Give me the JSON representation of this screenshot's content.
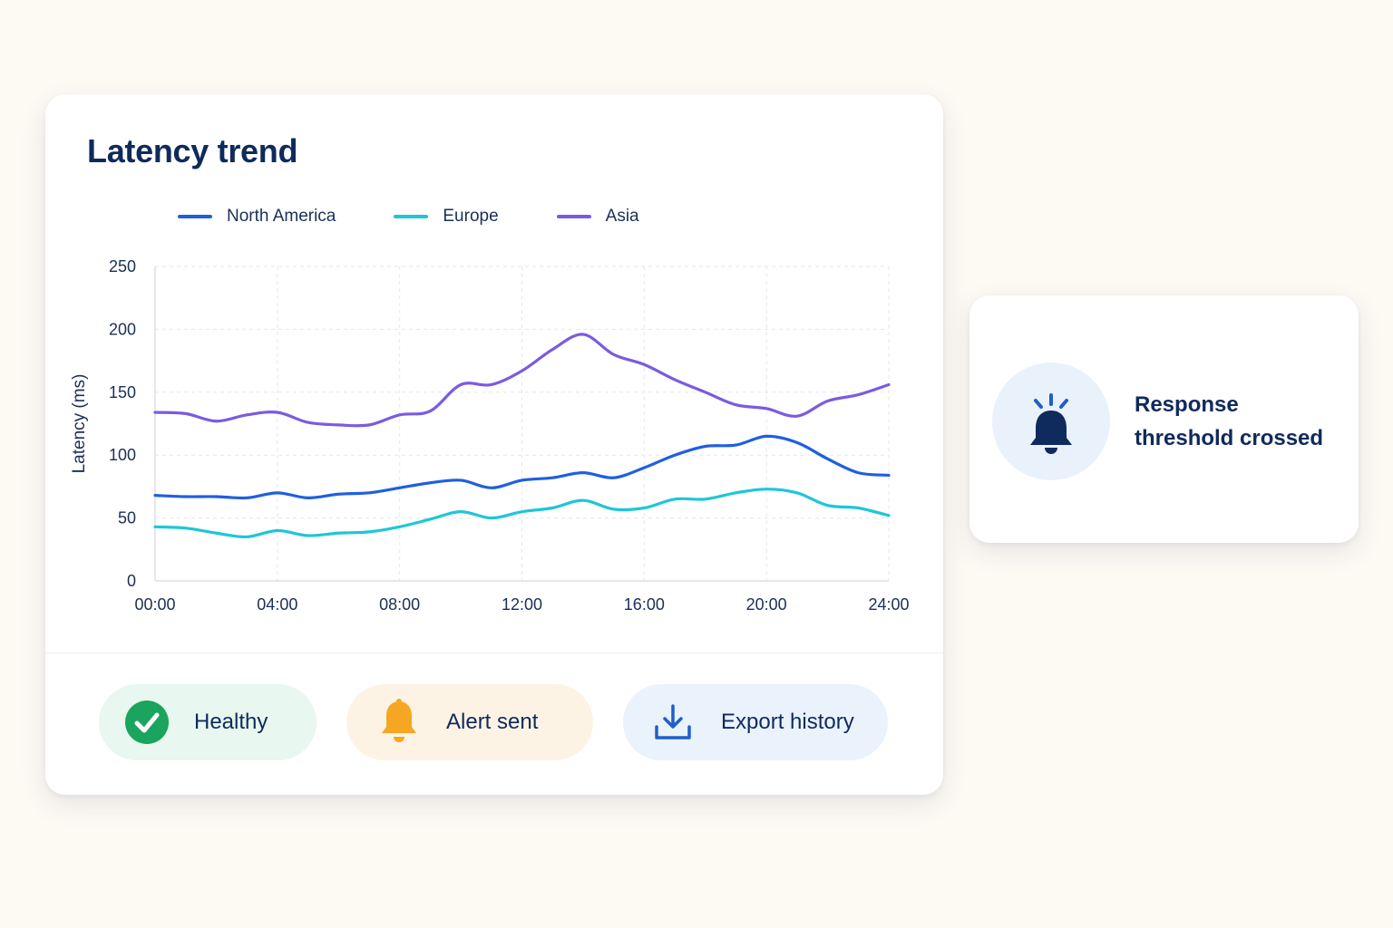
{
  "card": {
    "title": "Latency trend"
  },
  "colors": {
    "north_america": "#1f5fe0",
    "europe": "#1ec6d8",
    "asia": "#7b5be0",
    "healthy": "#1aa45d",
    "alert": "#f5a623",
    "export": "#1f5fc8",
    "title": "#0f2a5c"
  },
  "chart_data": {
    "type": "line",
    "title": "",
    "xlabel": "",
    "ylabel": "Latency (ms)",
    "x_ticks": [
      "00:00",
      "04:00",
      "08:00",
      "12:00",
      "16:00",
      "20:00",
      "24:00"
    ],
    "y_ticks": [
      "0",
      "50",
      "100",
      "150",
      "200",
      "250"
    ],
    "xlim": [
      0,
      24
    ],
    "ylim": [
      0,
      250
    ],
    "grid": true,
    "legend_position": "top",
    "x": [
      0,
      1,
      2,
      3,
      4,
      5,
      6,
      7,
      8,
      9,
      10,
      11,
      12,
      13,
      14,
      15,
      16,
      17,
      18,
      19,
      20,
      21,
      22,
      23,
      24
    ],
    "series": [
      {
        "name": "North America",
        "values": [
          68,
          67,
          67,
          66,
          70,
          66,
          69,
          70,
          74,
          78,
          80,
          74,
          80,
          82,
          86,
          82,
          90,
          100,
          107,
          108,
          115,
          110,
          97,
          86,
          84
        ]
      },
      {
        "name": "Europe",
        "values": [
          43,
          42,
          38,
          35,
          40,
          36,
          38,
          39,
          43,
          49,
          55,
          50,
          55,
          58,
          64,
          57,
          58,
          65,
          65,
          70,
          73,
          70,
          60,
          58,
          52
        ]
      },
      {
        "name": "Asia",
        "values": [
          134,
          133,
          127,
          132,
          134,
          126,
          124,
          124,
          132,
          135,
          156,
          156,
          167,
          184,
          196,
          180,
          172,
          160,
          150,
          140,
          137,
          131,
          143,
          148,
          156
        ]
      }
    ]
  },
  "status": {
    "healthy_label": "Healthy",
    "alert_label": "Alert sent",
    "export_label": "Export history"
  },
  "icons": {
    "healthy": "check-circle-icon",
    "alert": "bell-icon",
    "export": "download-icon",
    "notification": "bell-ringing-icon"
  },
  "notification": {
    "text": "Response threshold crossed"
  }
}
